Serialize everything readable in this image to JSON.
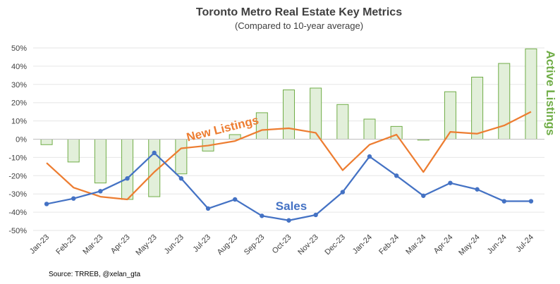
{
  "chart_data": {
    "type": "bar+line",
    "title": "Toronto Metro Real Estate Key Metrics",
    "subtitle": "(Compared to 10-year average)",
    "categories": [
      "Jan-23",
      "Feb-23",
      "Mar-23",
      "Apr-23",
      "May-23",
      "Jun-23",
      "Jul-23",
      "Aug-23",
      "Sep-23",
      "Oct-23",
      "Nov-23",
      "Dec-23",
      "Jan-24",
      "Feb-24",
      "Mar-24",
      "Apr-24",
      "May-24",
      "Jun-24",
      "Jul-24"
    ],
    "ylim": [
      -50,
      50
    ],
    "yticks": [
      -50,
      -40,
      -30,
      -20,
      -10,
      0,
      10,
      20,
      30,
      40,
      50
    ],
    "ytick_labels": [
      "-50%",
      "-40%",
      "-30%",
      "-20%",
      "-10%",
      "0%",
      "10%",
      "20%",
      "30%",
      "40%",
      "50%"
    ],
    "series": [
      {
        "name": "Active Listings",
        "type": "bar",
        "color": "#70ad47",
        "fill": "#e2efda",
        "values": [
          -3,
          -12.5,
          -24,
          -33,
          -31.5,
          -19,
          -6.5,
          2.5,
          14.5,
          27,
          28,
          19,
          11,
          7,
          -0.5,
          26,
          34,
          41.5,
          49.5
        ]
      },
      {
        "name": "New Listings",
        "type": "line",
        "color": "#ed7d31",
        "values": [
          -13,
          -26.5,
          -31.5,
          -33,
          -18,
          -5,
          -3.5,
          -1,
          5,
          6,
          3.5,
          -17,
          -3,
          2.5,
          -18,
          4,
          3,
          7.5,
          15
        ]
      },
      {
        "name": "Sales",
        "type": "line",
        "color": "#4472c4",
        "values": [
          -35.5,
          -32.5,
          -28.5,
          -21.5,
          -7.5,
          -21.5,
          -38,
          -33,
          -42,
          -44.5,
          -41.5,
          -29,
          -9.5,
          -20,
          -31,
          -24,
          -27.5,
          -34,
          -34
        ]
      }
    ],
    "annotations": {
      "new_listings": "New Listings",
      "sales": "Sales",
      "active_listings": "Active Listings"
    },
    "source": "Source: TRREB, @xelan_gta"
  }
}
